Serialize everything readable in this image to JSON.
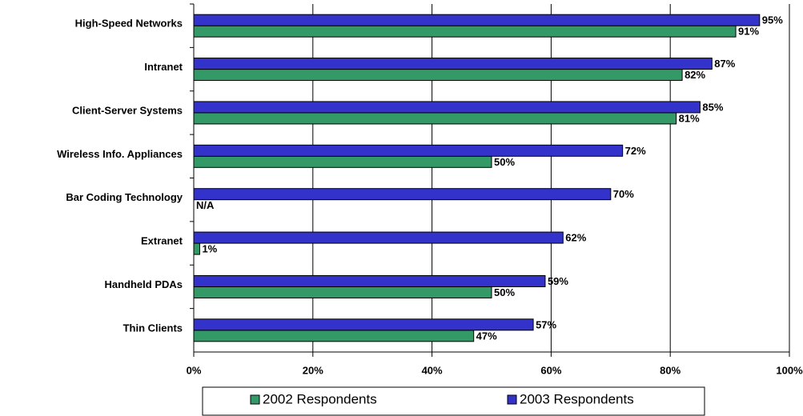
{
  "chart_data": {
    "type": "bar",
    "orientation": "horizontal",
    "categories": [
      "High-Speed Networks",
      "Intranet",
      "Client-Server Systems",
      "Wireless Info. Appliances",
      "Bar Coding Technology",
      "Extranet",
      "Handheld PDAs",
      "Thin Clients"
    ],
    "series": [
      {
        "name": "2002 Respondents",
        "color": "#339966",
        "values": [
          91,
          82,
          81,
          50,
          null,
          1,
          50,
          47
        ],
        "value_labels": [
          "91%",
          "82%",
          "81%",
          "50%",
          "N/A",
          "1%",
          "50%",
          "47%"
        ]
      },
      {
        "name": "2003 Respondents",
        "color": "#3333cc",
        "values": [
          95,
          87,
          85,
          72,
          70,
          62,
          59,
          57
        ],
        "value_labels": [
          "95%",
          "87%",
          "85%",
          "72%",
          "70%",
          "62%",
          "59%",
          "57%"
        ]
      }
    ],
    "xlim": [
      0,
      100
    ],
    "xticks": [
      {
        "value": 0,
        "label": "0%"
      },
      {
        "value": 20,
        "label": "20%"
      },
      {
        "value": 40,
        "label": "40%"
      },
      {
        "value": 60,
        "label": "60%"
      },
      {
        "value": 80,
        "label": "80%"
      },
      {
        "value": 100,
        "label": "100%"
      }
    ],
    "grid": true,
    "legend": "bottom"
  }
}
